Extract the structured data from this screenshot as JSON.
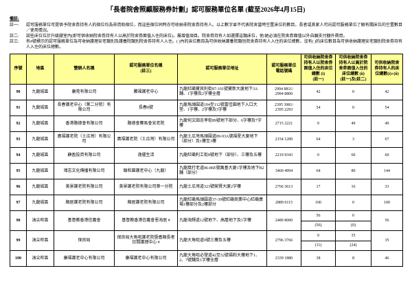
{
  "title": "「長者院舍照顧服務券計劃」認可服務單位名單 (截至2026年4月15日)",
  "notes": {
    "heading": "備註:",
    "items": [
      {
        "label": "註一:",
        "text": "認可服務單位可提供予院舍券持有人的宿位均為非資助宿位，而這些宿位同時亦可收納非院舍券持有人。以上數字並不代表院舍當時空置床位的數目，長者或其家人可向認可服務單位了解有關床位的空置數目／使用情況。"
      },
      {
        "label": "註二:",
        "text": "該些床位位於升級寢室內(即可供收納院舍券持有人以高於院舍券面值入住的床位)，屬增值項目。院舍券持有人如選擇這類床位，他/她必須在院舍券面值以外自願支付額外費用。"
      },
      {
        "label": "註三:",
        "text": "有#號標示的認可服務單位為可收納護理安老類別及護養院類別院舍券持有人入住。( )內的床位數目為可供收納護養院類別院舍券持有人入住的床位總數，沒有( )的床位數目為可供收納護理安老類別院舍券持有人入住的床位總數。"
      }
    ]
  },
  "table": {
    "headers": [
      "序號",
      "地區",
      "營辦人名稱",
      "認可服務單位名稱\n(註三)",
      "認可服務單位地址",
      "認可服務單位\n電話號碼",
      "可供收納院舍券持有人以院舍券面值入住的床位總數 (i)\n(註一)",
      "可供收納院舍券持有人以高於院舍券面值入住的床位總數 (ii)\n(註一)及(註二)",
      "可供收納院舍券持有人的床位總數(i)+(ii)"
    ],
    "rows": [
      {
        "cells": [
          "90",
          "九龍城區",
          "康莞有限公司",
          "騰福護老中心",
          "九龍紅磡寶其利街87-101號寶新大廈地下3A舖、1字樓及2字樓全層",
          "2994 8811/\n2994 8800",
          "42",
          "0",
          "42"
        ]
      },
      {
        "cells": [
          "91",
          "九龍城區",
          "長春護老中心（第二分院）有限公司",
          "長春8號",
          "九龍馬頭圍道104至112號富佳園地下入口大堂、1字樓、2字樓及3字樓",
          "2395 3981/\n2395 2293",
          "54",
          "0",
          "54"
        ]
      },
      {
        "cells": [
          "92",
          "九龍城區",
          "香港路德會有限公司",
          "路德會賽馬會安老院",
          "九龍何文田忠孝街89號地下部分、6字樓及7字樓",
          "2715 2221",
          "0",
          "49",
          "49"
        ]
      },
      {
        "cells": [
          "93",
          "九龍城區",
          "廣福護老院（土瓜灣）有限公司",
          "廣福護老院（土瓜灣）有限公司",
          "九龍土瓜灣馬頭圍道89-93A號福星大廈地下（部分）及1樓至3樓",
          "2154 1289",
          "64",
          "3",
          "67"
        ]
      },
      {
        "cells": [
          "94",
          "九龍城區",
          "顧盈投資有限公司",
          "逸優生活",
          "九龍紅磡利工街8號地下（部份）、三樓及五樓",
          "2219 9343",
          "0",
          "60",
          "60"
        ]
      },
      {
        "cells": [
          "95",
          "九龍城區",
          "鴻志文化傳播有限公司",
          "頤和園護老中心（九龍）",
          "九龍窩打老道86-86E號萬基大廈1字樓及地下B2舖（部分）",
          "3460 4994",
          "64",
          "80",
          "144"
        ]
      },
      {
        "cells": [
          "96",
          "九龍城區",
          "美景護老院有限公司",
          "美景護老院有限公司第一分院",
          "九龍土瓜灣道323號榮賢大廈2字樓",
          "2766 3613",
          "17",
          "16",
          "33"
        ]
      },
      {
        "cells": [
          "97",
          "九龍城區",
          "順居護老院有限公司",
          "順居護老院有限公司",
          "九龍紅磡馬頭圍道37-39號紅磡商業中心紅磡廣場1樓部分及2樓部分",
          "2889 0115",
          "100",
          "0",
          "100"
        ]
      },
      {
        "cells": [
          "98",
          "油尖旺區",
          "基督教香港信義會",
          "基督教香港信義會恩海居 #",
          "九龍海輝道12號地下、高層地下及1字樓",
          "2489 8000",
          {
            "top": "56",
            "bottom": "(56)"
          },
          {
            "top": "0",
            "bottom": "(0)"
          },
          "56"
        ]
      },
      {
        "cells": [
          "99",
          "油尖旺區",
          "保良局",
          "保良局大角咀護老院暨耆順長者日間護理中心 #",
          "九龍大角咀道9號三樓及五樓",
          "2796 3766",
          {
            "top": "0",
            "bottom": "(11)"
          },
          {
            "top": "35",
            "bottom": "(24)"
          },
          "35"
        ]
      },
      {
        "cells": [
          "100",
          "油尖旺區",
          "康福護老中心有限公司",
          "康福護老中心有限公司",
          "九龍大角咀必發道42至52號福和大樓地下1、2、7號舖及1字樓全層",
          "2339 1880",
          "38",
          "8",
          "46"
        ]
      }
    ]
  }
}
